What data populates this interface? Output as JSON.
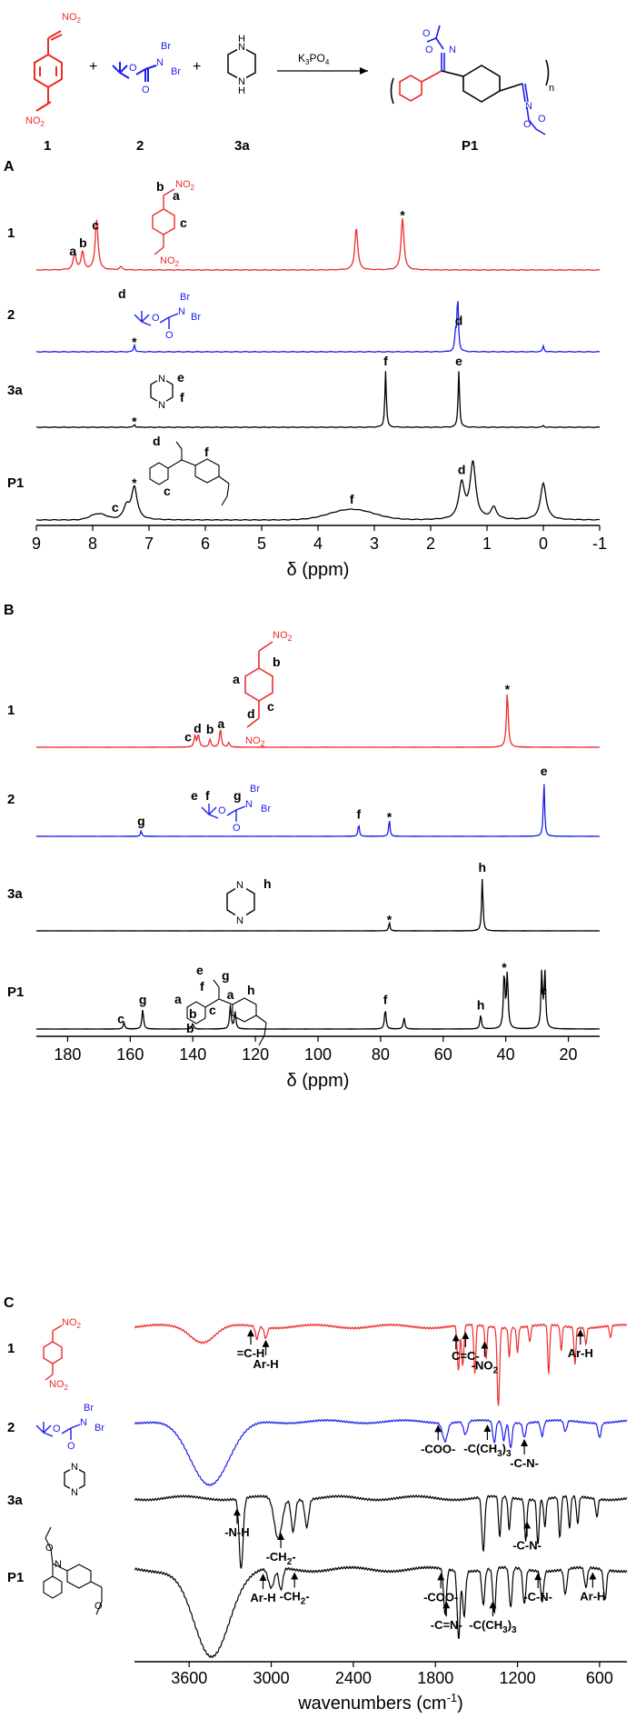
{
  "colors": {
    "red": "#ee2b2b",
    "blue": "#1c1cf0",
    "black": "#000000"
  },
  "scheme": {
    "compounds": [
      {
        "label": "1"
      },
      {
        "label": "2"
      },
      {
        "label": "3a"
      },
      {
        "label": "P1"
      }
    ],
    "plus": "+",
    "reagent_main": "K",
    "reagent_sub1": "3",
    "reagent_mid": "PO",
    "reagent_sub2": "4",
    "struct_labels": {
      "no2": "NO",
      "no2_sub": "2",
      "br": "Br",
      "n": "N",
      "o": "O",
      "nh": "H",
      "repeat_n": "n"
    }
  },
  "panels": {
    "a": "A",
    "b": "B",
    "c": "C"
  },
  "chart_data": [
    {
      "type": "line",
      "panel": "A",
      "xlabel_symbol": "δ",
      "xlabel": " (ppm)",
      "xlim": [
        9,
        -1
      ],
      "xtick_labels": [
        "9",
        "8",
        "7",
        "6",
        "5",
        "4",
        "3",
        "2",
        "1",
        "0",
        "-1"
      ],
      "xticks": [
        9,
        8,
        7,
        6,
        5,
        4,
        3,
        2,
        1,
        0,
        -1
      ],
      "series": [
        {
          "name": "1",
          "color": "#ee2b2b",
          "peaks": [
            [
              8.32,
              0.28
            ],
            [
              8.18,
              0.3
            ],
            [
              7.93,
              0.85
            ],
            [
              7.5,
              0.05
            ],
            [
              3.32,
              0.72
            ],
            [
              2.5,
              0.88
            ]
          ],
          "width": 0.03,
          "labels": [
            {
              "text": "a",
              "x": 8.35
            },
            {
              "text": "b",
              "x": 8.17
            },
            {
              "text": "c",
              "x": 7.95
            },
            {
              "text": "*",
              "x": 2.5
            }
          ]
        },
        {
          "name": "2",
          "color": "#1c1cf0",
          "peaks": [
            [
              7.26,
              0.12
            ],
            [
              1.52,
              0.95
            ],
            [
              1.56,
              0.3
            ],
            [
              0.0,
              0.1
            ]
          ],
          "width": 0.015,
          "labels": [
            {
              "text": "*",
              "x": 7.26
            },
            {
              "text": "d",
              "x": 1.5
            },
            {
              "text": "d",
              "x": 8.4
            }
          ]
        },
        {
          "name": "3a",
          "color": "#000000",
          "peaks": [
            [
              7.26,
              0.05
            ],
            [
              2.8,
              0.95
            ],
            [
              1.5,
              0.95
            ],
            [
              0.0,
              0.03
            ]
          ],
          "width": 0.015,
          "labels": [
            {
              "text": "*",
              "x": 7.26
            },
            {
              "text": "f",
              "x": 2.8
            },
            {
              "text": "e",
              "x": 1.5
            }
          ]
        },
        {
          "name": "P1",
          "color": "#000000",
          "peaks": [
            [
              7.4,
              0.22
            ],
            [
              7.26,
              0.55
            ],
            [
              1.45,
              0.6
            ],
            [
              1.25,
              0.95
            ],
            [
              0.88,
              0.2
            ],
            [
              0.0,
              0.62
            ]
          ],
          "width": 0.06,
          "broad": [
            [
              3.4,
              0.18,
              0.55
            ],
            [
              7.9,
              0.1,
              0.2
            ]
          ],
          "labels": [
            {
              "text": "c",
              "x": 7.6
            },
            {
              "text": "*",
              "x": 7.26
            },
            {
              "text": "f",
              "x": 3.4
            },
            {
              "text": "d",
              "x": 1.45
            }
          ]
        }
      ]
    },
    {
      "type": "line",
      "panel": "B",
      "xlabel_symbol": "δ",
      "xlabel": " (ppm)",
      "xlim": [
        190,
        10
      ],
      "xtick_labels": [
        "180",
        "160",
        "140",
        "120",
        "100",
        "80",
        "60",
        "40",
        "20"
      ],
      "xticks": [
        180,
        160,
        140,
        120,
        100,
        80,
        60,
        40,
        20
      ],
      "series": [
        {
          "name": "1",
          "color": "#ee2b2b",
          "peaks": [
            [
              139.3,
              0.2
            ],
            [
              138.2,
              0.22
            ],
            [
              134.5,
              0.14
            ],
            [
              131.2,
              0.32
            ],
            [
              128.5,
              0.08
            ],
            [
              39.5,
              0.98
            ]
          ],
          "width": 0.35,
          "labels": [
            {
              "text": "c",
              "x": 141.5
            },
            {
              "text": "d",
              "x": 138.5
            },
            {
              "text": "b",
              "x": 134.5
            },
            {
              "text": "a",
              "x": 131
            },
            {
              "text": "*",
              "x": 39.5
            }
          ]
        },
        {
          "name": "2",
          "color": "#1c1cf0",
          "peaks": [
            [
              156.5,
              0.1
            ],
            [
              87.0,
              0.22
            ],
            [
              77.2,
              0.3
            ],
            [
              27.8,
              0.98
            ]
          ],
          "width": 0.25,
          "labels": [
            {
              "text": "g",
              "x": 156.5
            },
            {
              "text": "f",
              "x": 87
            },
            {
              "text": "*",
              "x": 77.2
            },
            {
              "text": "e",
              "x": 27.8
            }
          ]
        },
        {
          "name": "3a",
          "color": "#000000",
          "peaks": [
            [
              77.2,
              0.15
            ],
            [
              47.5,
              0.95
            ]
          ],
          "width": 0.25,
          "labels": [
            {
              "text": "*",
              "x": 77.2
            },
            {
              "text": "h",
              "x": 47.5
            }
          ]
        },
        {
          "name": "P1",
          "color": "#000000",
          "peaks": [
            [
              162.0,
              0.12
            ],
            [
              156.0,
              0.35
            ],
            [
              140.0,
              0.1
            ],
            [
              128.0,
              0.42
            ],
            [
              126.5,
              0.3
            ],
            [
              78.5,
              0.35
            ],
            [
              72.5,
              0.2
            ],
            [
              48.0,
              0.25
            ],
            [
              40.5,
              0.98
            ],
            [
              39.5,
              0.98
            ],
            [
              28.5,
              0.98
            ],
            [
              27.5,
              0.98
            ]
          ],
          "width": 0.3,
          "labels": [
            {
              "text": "c",
              "x": 163
            },
            {
              "text": "g",
              "x": 156
            },
            {
              "text": "b",
              "x": 140
            },
            {
              "text": "a",
              "x": 128
            },
            {
              "text": "f",
              "x": 78.5
            },
            {
              "text": "h",
              "x": 48
            },
            {
              "text": "*",
              "x": 40.5
            },
            {
              "text": "e",
              "x": 28
            }
          ]
        }
      ]
    },
    {
      "type": "line",
      "panel": "C",
      "xlabel": "wavenumbers (cm",
      "xlabel_sup": "-1",
      "xlabel_end": ")",
      "xlim": [
        4000,
        400
      ],
      "xtick_labels": [
        "3600",
        "3000",
        "2400",
        "1800",
        "1200",
        "600"
      ],
      "xticks": [
        3600,
        3000,
        2400,
        1800,
        1200,
        600
      ],
      "series": [
        {
          "name": "1",
          "color": "#ee2b2b",
          "baseline": 0.08,
          "dips": [
            [
              3500,
              0.18,
              120
            ],
            [
              3105,
              0.15,
              15
            ],
            [
              3040,
              0.13,
              15
            ],
            [
              1632,
              0.55,
              12
            ],
            [
              1600,
              0.5,
              12
            ],
            [
              1512,
              0.6,
              10
            ],
            [
              1430,
              0.4,
              10
            ],
            [
              1340,
              0.98,
              12
            ],
            [
              1260,
              0.35,
              10
            ],
            [
              1200,
              0.3,
              10
            ],
            [
              1110,
              0.2,
              10
            ],
            [
              972,
              0.6,
              10
            ],
            [
              880,
              0.3,
              10
            ],
            [
              780,
              0.45,
              10
            ],
            [
              700,
              0.2,
              10
            ],
            [
              520,
              0.15,
              10
            ]
          ],
          "annotations": [
            {
              "text": "=C-H",
              "x": 3150
            },
            {
              "text": "Ar-H",
              "x": 3040
            },
            {
              "text": "-",
              "x": 1650
            },
            {
              "text": "C=C-",
              "x": 1580
            },
            {
              "text": "-NO",
              "x": 1440,
              "sub": "2"
            },
            {
              "text": "Ar-H",
              "x": 740
            }
          ]
        },
        {
          "name": "2",
          "color": "#1c1cf0",
          "baseline": 0.05,
          "dips": [
            [
              3450,
              0.85,
              200
            ],
            [
              1730,
              0.25,
              25
            ],
            [
              1580,
              0.18,
              20
            ],
            [
              1370,
              0.3,
              15
            ],
            [
              1300,
              0.25,
              15
            ],
            [
              1250,
              0.35,
              15
            ],
            [
              1150,
              0.2,
              15
            ],
            [
              1020,
              0.2,
              15
            ],
            [
              850,
              0.15,
              15
            ],
            [
              600,
              0.2,
              15
            ]
          ],
          "annotations": [
            {
              "text": "-COO-",
              "x": 1780
            },
            {
              "text": "-C(CH",
              "x": 1420,
              "sub": "3",
              "end": ")",
              "sub2": "3"
            },
            {
              "text": "-C-N-",
              "x": 1150
            }
          ]
        },
        {
          "name": "3a",
          "color": "#000000",
          "baseline": 0.08,
          "dips": [
            [
              3220,
              0.78,
              20
            ],
            [
              2950,
              0.45,
              40
            ],
            [
              2840,
              0.35,
              20
            ],
            [
              2740,
              0.3,
              20
            ],
            [
              1450,
              0.6,
              15
            ],
            [
              1330,
              0.45,
              12
            ],
            [
              1260,
              0.35,
              12
            ],
            [
              1140,
              0.45,
              12
            ],
            [
              1050,
              0.5,
              12
            ],
            [
              1000,
              0.3,
              12
            ],
            [
              890,
              0.45,
              12
            ],
            [
              820,
              0.35,
              12
            ],
            [
              760,
              0.3,
              12
            ],
            [
              620,
              0.2,
              12
            ]
          ],
          "annotations": [
            {
              "text": "-N-H",
              "x": 3250
            },
            {
              "text": "-CH",
              "x": 2930,
              "sub": "2",
              "end": "-"
            },
            {
              "text": "-C-N-",
              "x": 1130
            }
          ]
        },
        {
          "name": "P1",
          "color": "#000000",
          "baseline": 0.15,
          "dips": [
            [
              3440,
              0.88,
              180
            ],
            [
              3000,
              0.2,
              30
            ],
            [
              2930,
              0.22,
              20
            ],
            [
              1730,
              0.45,
              15
            ],
            [
              1630,
              0.68,
              15
            ],
            [
              1590,
              0.45,
              15
            ],
            [
              1450,
              0.35,
              15
            ],
            [
              1370,
              0.45,
              15
            ],
            [
              1250,
              0.4,
              15
            ],
            [
              1150,
              0.35,
              15
            ],
            [
              1020,
              0.3,
              15
            ],
            [
              850,
              0.25,
              15
            ],
            [
              700,
              0.2,
              15
            ],
            [
              560,
              0.3,
              15
            ]
          ],
          "annotations": [
            {
              "text": "-COO-",
              "x": 1760
            },
            {
              "text": "-C=N-",
              "x": 1720
            },
            {
              "text": "Ar-H",
              "x": 3060
            },
            {
              "text": "-CH",
              "x": 2830,
              "sub": "2",
              "end": "-"
            },
            {
              "text": "-C(CH",
              "x": 1380,
              "sub": "3",
              "end": ")",
              "sub2": "3"
            },
            {
              "text": "-C-N-",
              "x": 1050
            },
            {
              "text": "Ar-H",
              "x": 650
            }
          ]
        }
      ]
    }
  ]
}
